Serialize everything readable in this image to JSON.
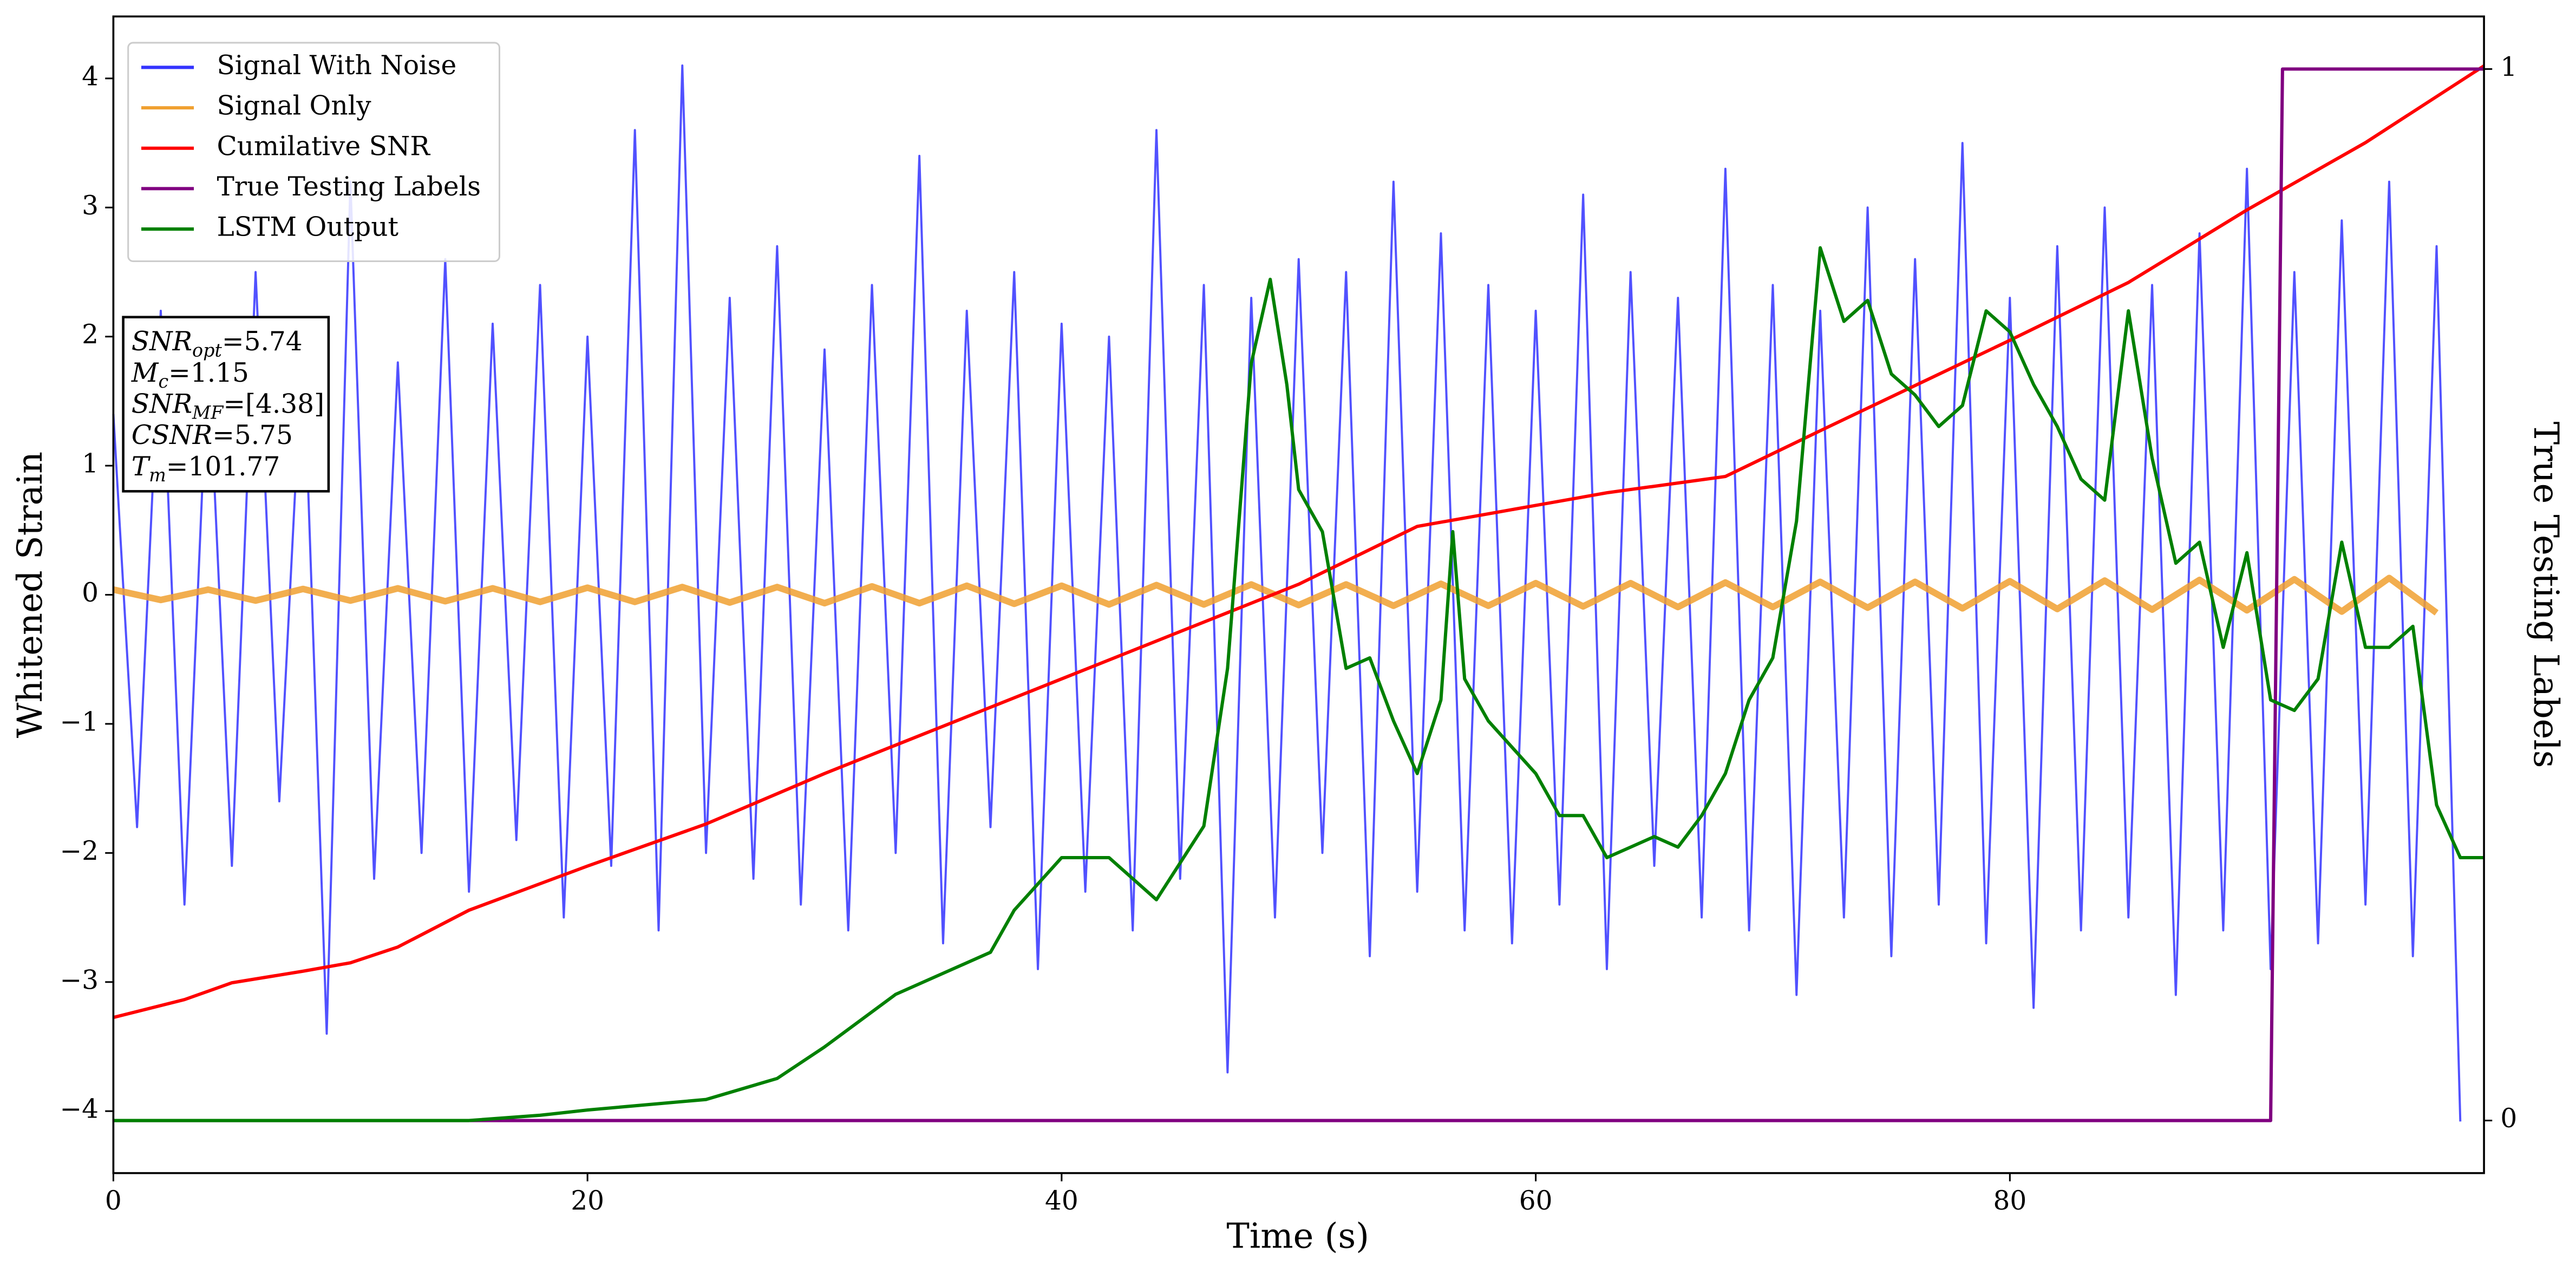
{
  "chart_data": {
    "type": "line",
    "xlabel": "Time (s)",
    "ylabel": "Whitened Strain",
    "y2label": "True Testing Labels",
    "xlim": [
      0,
      100
    ],
    "ylim": [
      -4.48,
      4.48
    ],
    "y2lim": [
      -0.05,
      1.05
    ],
    "xticks": [
      0,
      20,
      40,
      60,
      80
    ],
    "yticks": [
      {
        "value": -4,
        "label": "−4"
      },
      {
        "value": -3,
        "label": "−3"
      },
      {
        "value": -2,
        "label": "−2"
      },
      {
        "value": -1,
        "label": "−1"
      },
      0,
      1,
      2,
      3,
      4
    ],
    "y2ticks": [
      0,
      1
    ],
    "legend": "upper left",
    "series": [
      {
        "name": "Signal With Noise",
        "color": "#3333ff",
        "axis": "y",
        "x": [
          0,
          1,
          2,
          3,
          4,
          5,
          6,
          7,
          8,
          9,
          10,
          11,
          12,
          13,
          14,
          15,
          16,
          17,
          18,
          19,
          20,
          21,
          22,
          23,
          24,
          25,
          26,
          27,
          28,
          29,
          30,
          31,
          32,
          33,
          34,
          35,
          36,
          37,
          38,
          39,
          40,
          41,
          42,
          43,
          44,
          45,
          46,
          47,
          48,
          49,
          50,
          51,
          52,
          53,
          54,
          55,
          56,
          57,
          58,
          59,
          60,
          61,
          62,
          63,
          64,
          65,
          66,
          67,
          68,
          69,
          70,
          71,
          72,
          73,
          74,
          75,
          76,
          77,
          78,
          79,
          80,
          81,
          82,
          83,
          84,
          85,
          86,
          87,
          88,
          89,
          90,
          91,
          92,
          93,
          94,
          95,
          96,
          97,
          98,
          99
        ],
        "values": [
          1.4,
          -1.8,
          2.2,
          -2.4,
          1.9,
          -2.1,
          2.5,
          -1.6,
          2.0,
          -3.4,
          3.2,
          -2.2,
          1.8,
          -2.0,
          2.6,
          -2.3,
          2.1,
          -1.9,
          2.4,
          -2.5,
          2.0,
          -2.1,
          3.6,
          -2.6,
          4.1,
          -2.0,
          2.3,
          -2.2,
          2.7,
          -2.4,
          1.9,
          -2.6,
          2.4,
          -2.0,
          3.4,
          -2.7,
          2.2,
          -1.8,
          2.5,
          -2.9,
          2.1,
          -2.3,
          2.0,
          -2.6,
          3.6,
          -2.2,
          2.4,
          -3.7,
          2.3,
          -2.5,
          2.6,
          -2.0,
          2.5,
          -2.8,
          3.2,
          -2.3,
          2.8,
          -2.6,
          2.4,
          -2.7,
          2.2,
          -2.4,
          3.1,
          -2.9,
          2.5,
          -2.1,
          2.3,
          -2.5,
          3.3,
          -2.6,
          2.4,
          -3.1,
          2.2,
          -2.5,
          3.0,
          -2.8,
          2.6,
          -2.4,
          3.5,
          -2.7,
          2.3,
          -3.2,
          2.7,
          -2.6,
          3.0,
          -2.5,
          2.4,
          -3.1,
          2.8,
          -2.6,
          3.3,
          -2.9,
          2.5,
          -2.7,
          2.9,
          -2.4,
          3.2,
          -2.8,
          2.7,
          -4.08
        ]
      },
      {
        "name": "Signal Only",
        "color": "#f0a030",
        "axis": "y",
        "x": [
          0,
          2,
          4,
          6,
          8,
          10,
          12,
          14,
          16,
          18,
          20,
          22,
          24,
          26,
          28,
          30,
          32,
          34,
          36,
          38,
          40,
          42,
          44,
          46,
          48,
          50,
          52,
          54,
          56,
          58,
          60,
          62,
          64,
          66,
          68,
          70,
          72,
          74,
          76,
          78,
          80,
          82,
          84,
          86,
          88,
          90,
          92,
          94,
          96,
          98
        ],
        "values": [
          0.04,
          -0.04,
          0.04,
          -0.045,
          0.045,
          -0.045,
          0.05,
          -0.05,
          0.05,
          -0.055,
          0.055,
          -0.055,
          0.06,
          -0.06,
          0.06,
          -0.065,
          0.065,
          -0.065,
          0.07,
          -0.07,
          0.07,
          -0.075,
          0.075,
          -0.075,
          0.08,
          -0.08,
          0.08,
          -0.085,
          0.085,
          -0.085,
          0.09,
          -0.09,
          0.09,
          -0.095,
          0.095,
          -0.095,
          0.1,
          -0.1,
          0.1,
          -0.105,
          0.105,
          -0.11,
          0.11,
          -0.115,
          0.115,
          -0.12,
          0.12,
          -0.13,
          0.13,
          -0.14
        ]
      },
      {
        "name": "Cumilative SNR",
        "color": "#ff0000",
        "axis": "y2",
        "x": [
          0,
          3,
          5,
          8,
          10,
          12,
          15,
          20,
          25,
          30,
          35,
          40,
          45,
          50,
          55,
          60,
          63,
          68,
          72,
          80,
          85,
          90,
          95,
          100
        ],
        "values": [
          0.098,
          0.115,
          0.131,
          0.142,
          0.15,
          0.165,
          0.2,
          0.242,
          0.282,
          0.33,
          0.375,
          0.42,
          0.465,
          0.51,
          0.565,
          0.585,
          0.597,
          0.6125,
          0.656,
          0.742,
          0.797,
          0.866,
          0.93,
          1.003
        ]
      },
      {
        "name": "True Testing Labels",
        "color": "#800080",
        "axis": "y2",
        "x": [
          0,
          91,
          91.5,
          100
        ],
        "values": [
          0,
          0,
          1,
          1
        ]
      },
      {
        "name": "LSTM Output",
        "color": "#008000",
        "axis": "y2",
        "x": [
          0,
          15,
          18,
          20,
          25,
          28,
          30,
          33,
          35,
          37,
          38,
          40,
          42,
          44,
          46,
          47,
          48,
          48.8,
          49.5,
          50,
          51,
          52,
          53,
          54,
          55,
          56,
          56.5,
          57,
          58,
          60,
          61,
          62,
          63,
          64,
          65,
          66,
          67,
          68,
          69,
          70,
          71,
          72,
          73,
          74,
          75,
          76,
          77,
          78,
          79,
          80,
          81,
          82,
          83,
          84,
          85,
          86,
          87,
          88,
          89,
          90,
          91,
          92,
          93,
          94,
          95,
          96,
          97,
          98,
          99,
          100
        ],
        "values": [
          0,
          0,
          0.005,
          0.01,
          0.02,
          0.04,
          0.07,
          0.12,
          0.14,
          0.16,
          0.2,
          0.25,
          0.25,
          0.21,
          0.28,
          0.43,
          0.72,
          0.8,
          0.7,
          0.6,
          0.56,
          0.43,
          0.44,
          0.38,
          0.33,
          0.4,
          0.56,
          0.42,
          0.38,
          0.33,
          0.29,
          0.29,
          0.25,
          0.26,
          0.27,
          0.26,
          0.29,
          0.33,
          0.4,
          0.44,
          0.57,
          0.83,
          0.76,
          0.78,
          0.71,
          0.69,
          0.66,
          0.68,
          0.77,
          0.75,
          0.7,
          0.66,
          0.61,
          0.59,
          0.77,
          0.63,
          0.53,
          0.55,
          0.45,
          0.54,
          0.4,
          0.39,
          0.42,
          0.55,
          0.45,
          0.45,
          0.47,
          0.3,
          0.25,
          0.25
        ]
      }
    ],
    "annotation": [
      {
        "main": "SNR",
        "sub": "opt",
        "rest": "=5.74"
      },
      {
        "main": "M",
        "sub": "c",
        "rest": "=1.15"
      },
      {
        "main": "SNR",
        "sub": "MF",
        "rest": "=[4.38]"
      },
      {
        "main": "CSNR",
        "sub": null,
        "rest": "=5.75"
      },
      {
        "main": "T",
        "sub": "m",
        "rest": "=101.77"
      }
    ]
  }
}
